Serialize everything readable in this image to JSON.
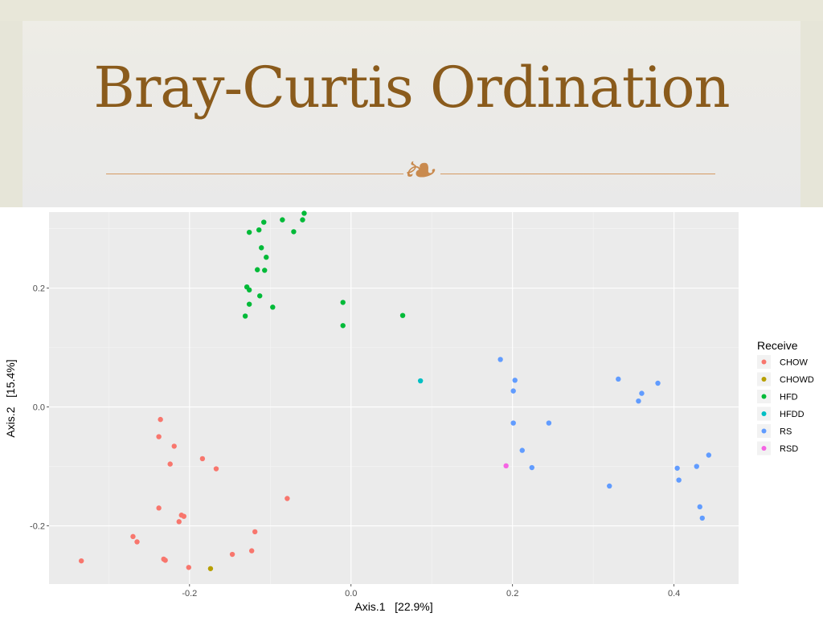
{
  "slide": {
    "title": "Bray-Curtis Ordination",
    "ornament_icon": "fleuron-ornament-icon"
  },
  "chart_data": {
    "type": "scatter",
    "title": "",
    "xlabel": "Axis.1   [22.9%]",
    "ylabel": "Axis.2   [15.4%]",
    "xlim": [
      -0.374,
      0.48
    ],
    "ylim": [
      -0.298,
      0.328
    ],
    "xticks": [
      -0.2,
      0.0,
      0.2,
      0.4
    ],
    "xtick_labels": [
      "-0.2",
      "0.0",
      "0.2",
      "0.4"
    ],
    "yticks": [
      -0.2,
      0.0,
      0.2
    ],
    "ytick_labels": [
      "-0.2",
      "0.0",
      "0.2"
    ],
    "grid": true,
    "background": "#ebebeb",
    "legend": {
      "title": "Receive",
      "placement": "right"
    },
    "series": [
      {
        "name": "CHOW",
        "color": "#f8766d",
        "points": [
          [
            -0.334,
            -0.259
          ],
          [
            -0.27,
            -0.218
          ],
          [
            -0.265,
            -0.227
          ],
          [
            -0.236,
            -0.021
          ],
          [
            -0.238,
            -0.05
          ],
          [
            -0.238,
            -0.17
          ],
          [
            -0.232,
            -0.256
          ],
          [
            -0.23,
            -0.258
          ],
          [
            -0.219,
            -0.066
          ],
          [
            -0.224,
            -0.096
          ],
          [
            -0.21,
            -0.182
          ],
          [
            -0.207,
            -0.184
          ],
          [
            -0.213,
            -0.193
          ],
          [
            -0.201,
            -0.27
          ],
          [
            -0.184,
            -0.087
          ],
          [
            -0.167,
            -0.104
          ],
          [
            -0.147,
            -0.248
          ],
          [
            -0.123,
            -0.242
          ],
          [
            -0.119,
            -0.21
          ],
          [
            -0.079,
            -0.154
          ]
        ]
      },
      {
        "name": "CHOWD",
        "color": "#b79f00",
        "points": [
          [
            -0.174,
            -0.272
          ]
        ]
      },
      {
        "name": "HFD",
        "color": "#00ba38",
        "points": [
          [
            -0.058,
            0.326
          ],
          [
            -0.06,
            0.315
          ],
          [
            -0.085,
            0.315
          ],
          [
            -0.108,
            0.311
          ],
          [
            -0.114,
            0.298
          ],
          [
            -0.126,
            0.294
          ],
          [
            -0.071,
            0.295
          ],
          [
            -0.111,
            0.268
          ],
          [
            -0.105,
            0.252
          ],
          [
            -0.116,
            0.231
          ],
          [
            -0.107,
            0.23
          ],
          [
            -0.129,
            0.202
          ],
          [
            -0.126,
            0.197
          ],
          [
            -0.113,
            0.187
          ],
          [
            -0.126,
            0.173
          ],
          [
            -0.097,
            0.168
          ],
          [
            -0.131,
            0.153
          ],
          [
            -0.01,
            0.176
          ],
          [
            -0.01,
            0.137
          ],
          [
            0.064,
            0.154
          ]
        ]
      },
      {
        "name": "HFDD",
        "color": "#00bfc4",
        "points": [
          [
            0.086,
            0.044
          ]
        ]
      },
      {
        "name": "RS",
        "color": "#619cff",
        "points": [
          [
            0.185,
            0.08
          ],
          [
            0.203,
            0.045
          ],
          [
            0.201,
            0.027
          ],
          [
            0.201,
            -0.027
          ],
          [
            0.212,
            -0.073
          ],
          [
            0.224,
            -0.102
          ],
          [
            0.245,
            -0.027
          ],
          [
            0.331,
            0.047
          ],
          [
            0.36,
            0.023
          ],
          [
            0.356,
            0.01
          ],
          [
            0.38,
            0.04
          ],
          [
            0.32,
            -0.133
          ],
          [
            0.404,
            -0.103
          ],
          [
            0.406,
            -0.123
          ],
          [
            0.428,
            -0.1
          ],
          [
            0.443,
            -0.081
          ],
          [
            0.432,
            -0.168
          ],
          [
            0.435,
            -0.187
          ]
        ]
      },
      {
        "name": "RSD",
        "color": "#f564e3",
        "points": [
          [
            0.192,
            -0.099
          ]
        ]
      }
    ]
  }
}
